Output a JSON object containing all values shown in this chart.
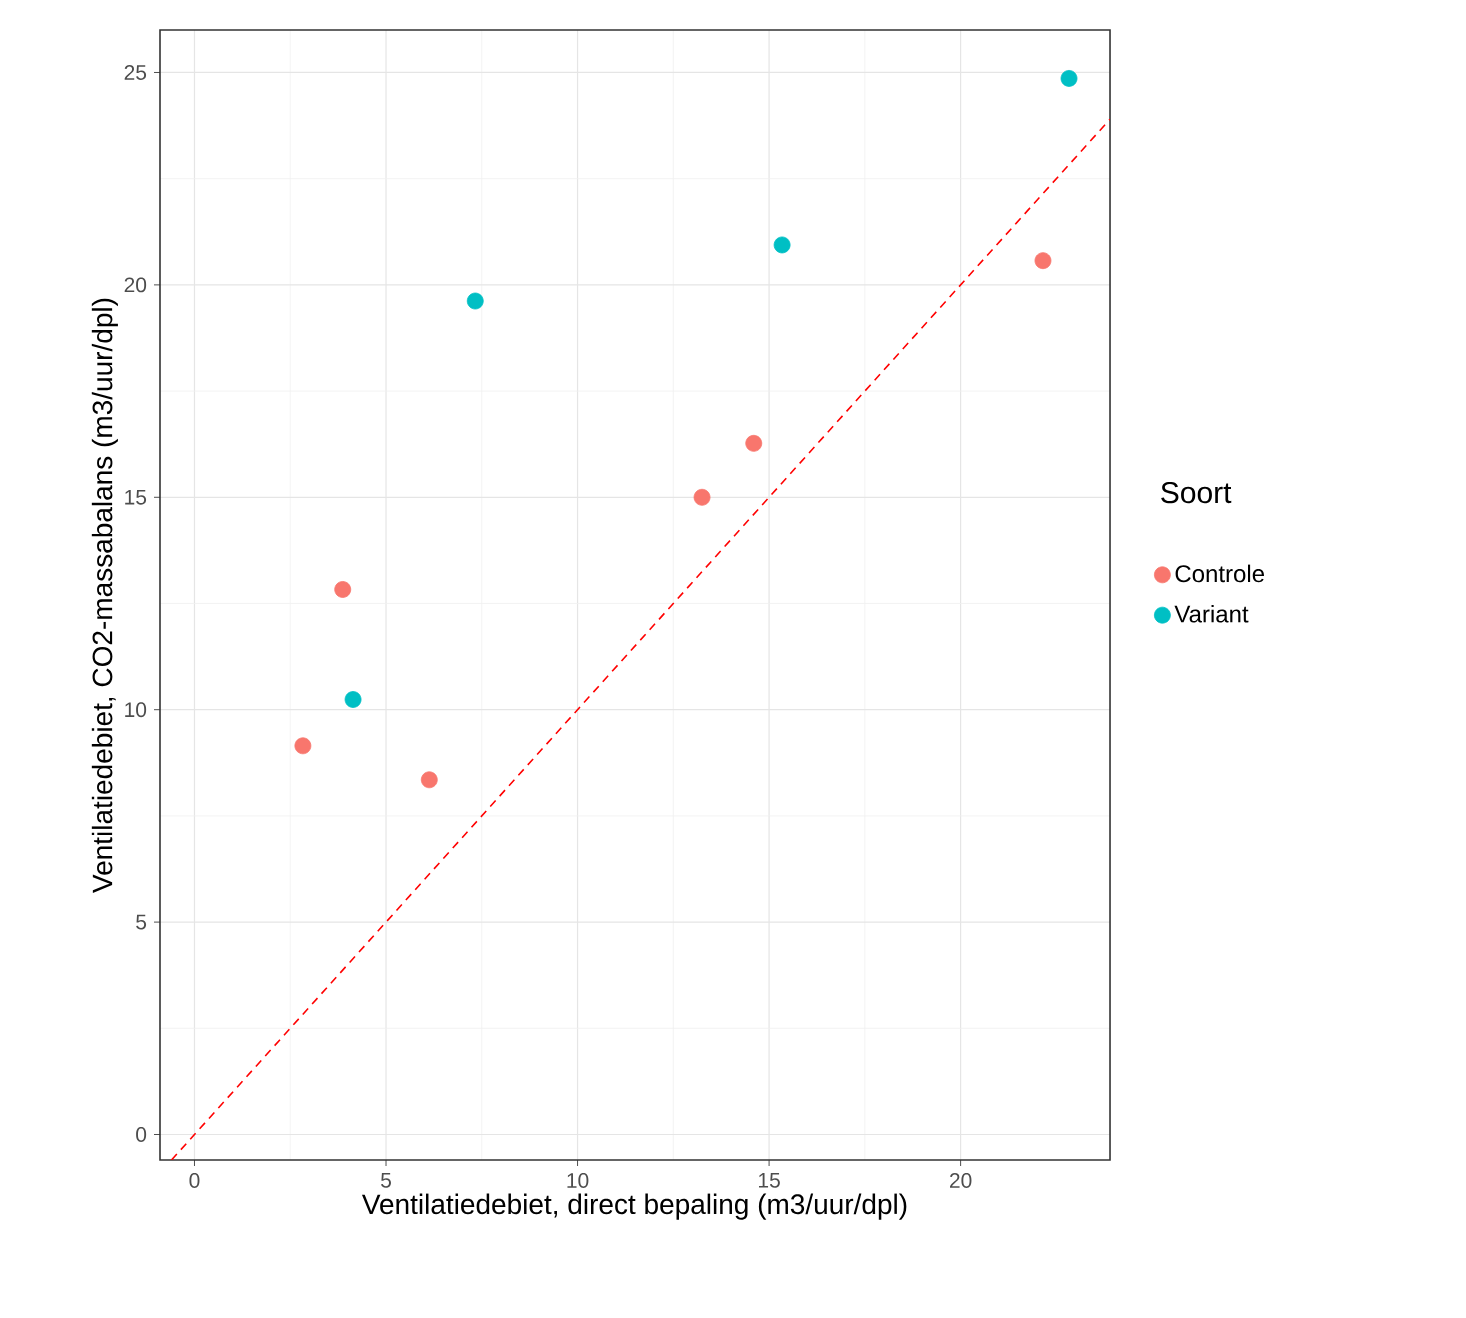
{
  "chart_data": {
    "type": "scatter",
    "xlabel": "Ventilatiedebiet, direct bepaling (m3/uur/dpl)",
    "ylabel": "Ventilatiedebiet, CO2-massabalans (m3/uur/dpl)",
    "legend_title": "Soort",
    "series": [
      {
        "name": "Controle",
        "color": "#f8766d",
        "marker": "circle",
        "x": [
          2.83,
          3.87,
          6.13,
          13.25,
          14.6,
          22.15
        ],
        "values": [
          9.15,
          12.83,
          8.35,
          15.0,
          16.27,
          20.57
        ]
      },
      {
        "name": "Variant",
        "color": "#00bfc4",
        "marker": "circle",
        "x": [
          4.14,
          7.33,
          15.34,
          22.83
        ],
        "values": [
          10.24,
          19.62,
          20.94,
          24.86
        ]
      },
      {
        "type": "line",
        "color": "#ff0000",
        "line_style": "dashed",
        "marker": "none",
        "x": [
          -0.6,
          23.9
        ],
        "values": [
          -0.6,
          23.9
        ]
      }
    ],
    "xlim": [
      -0.9,
      23.9
    ],
    "ylim": [
      -0.6,
      26.0
    ],
    "xticks": [
      0,
      5,
      10,
      15,
      20
    ],
    "yticks": [
      0,
      5,
      10,
      15,
      20,
      25
    ],
    "grid": true,
    "legend": "right"
  }
}
